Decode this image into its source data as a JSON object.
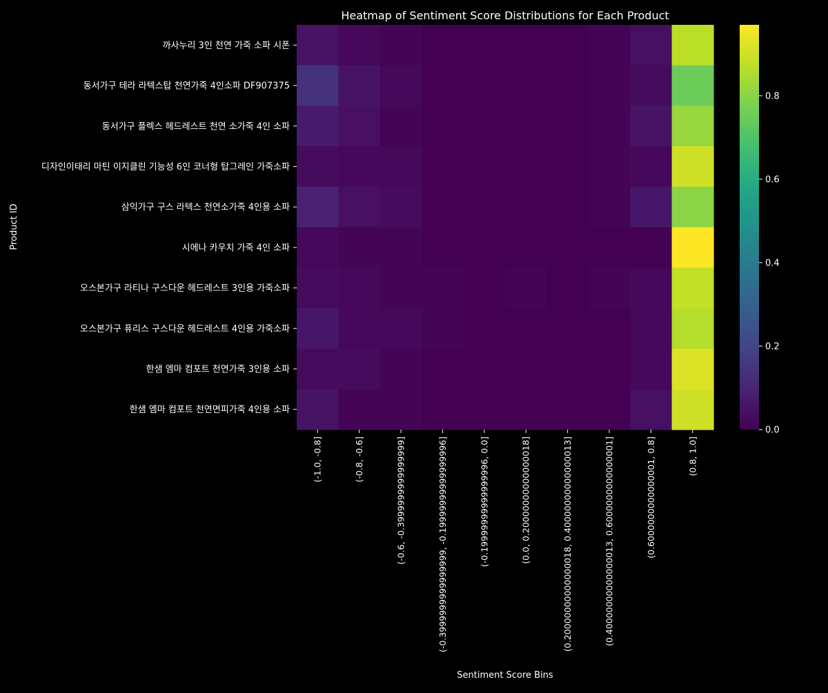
{
  "chart_data": {
    "type": "heatmap",
    "title": "Heatmap of Sentiment Score Distributions for Each Product",
    "xlabel": "Sentiment Score Bins",
    "ylabel": "Product ID",
    "colormap": "viridis",
    "colorbar": {
      "min": 0.0,
      "max": 0.97,
      "ticks": [
        0.0,
        0.2,
        0.4,
        0.6,
        0.8
      ],
      "tick_labels": [
        "0.0",
        "0.2",
        "0.4",
        "0.6",
        "0.8"
      ]
    },
    "x_categories": [
      "(-1.0, -0.8]",
      "(-0.8, -0.6]",
      "(-0.6, -0.3999999999999999]",
      "(-0.3999999999999999, -0.19999999999999996]",
      "(-0.19999999999999996, 0.0]",
      "(0.0, 0.20000000000000018]",
      "(0.20000000000000018, 0.40000000000000013]",
      "(0.40000000000000013, 0.6000000000000001]",
      "(0.6000000000000001, 0.8]",
      "(0.8, 1.0]"
    ],
    "y_categories": [
      "까사누리 3인 천연 가죽 소파 시폰",
      "동서가구 테라 라텍스탑 천연가죽 4인소파 DF907375",
      "동서가구 플렉스 헤드레스트 천연 소가죽 4인 소파",
      "디자인이태리 마틴 이지클린 기능성 6인 코너형 탑그레인 가죽소파",
      "삼익가구 구스 라텍스 천연소가죽 4인용 소파",
      "시에나 카우치 가죽 4인 소파",
      "오스본가구 라티나 구스다운 헤드레스트 3인용 가죽소파",
      "오스본가구 퓨리스 구스다운 헤드레스트 4인용 가죽소파",
      "한샘 엠마 컴포트 천연가죽 3인용 소파",
      "한샘 엠마 컴포트 천연면피가죽 4인용 소파"
    ],
    "values": [
      [
        0.05,
        0.02,
        0.01,
        0.0,
        0.0,
        0.0,
        0.0,
        0.01,
        0.04,
        0.87
      ],
      [
        0.14,
        0.05,
        0.02,
        0.0,
        0.0,
        0.0,
        0.0,
        0.01,
        0.03,
        0.75
      ],
      [
        0.07,
        0.04,
        0.01,
        0.0,
        0.0,
        0.0,
        0.0,
        0.01,
        0.05,
        0.82
      ],
      [
        0.03,
        0.02,
        0.02,
        0.0,
        0.0,
        0.0,
        0.0,
        0.01,
        0.02,
        0.9
      ],
      [
        0.09,
        0.04,
        0.03,
        0.0,
        0.0,
        0.0,
        0.0,
        0.01,
        0.06,
        0.8
      ],
      [
        0.02,
        0.01,
        0.01,
        0.0,
        0.0,
        0.0,
        0.0,
        0.0,
        0.0,
        0.97
      ],
      [
        0.03,
        0.02,
        0.01,
        0.01,
        0.0,
        0.01,
        0.0,
        0.01,
        0.02,
        0.88
      ],
      [
        0.06,
        0.02,
        0.02,
        0.01,
        0.0,
        0.0,
        0.0,
        0.0,
        0.02,
        0.86
      ],
      [
        0.03,
        0.03,
        0.01,
        0.0,
        0.0,
        0.0,
        0.0,
        0.0,
        0.02,
        0.92
      ],
      [
        0.05,
        0.01,
        0.01,
        0.0,
        0.0,
        0.0,
        0.0,
        0.0,
        0.04,
        0.9
      ]
    ]
  }
}
